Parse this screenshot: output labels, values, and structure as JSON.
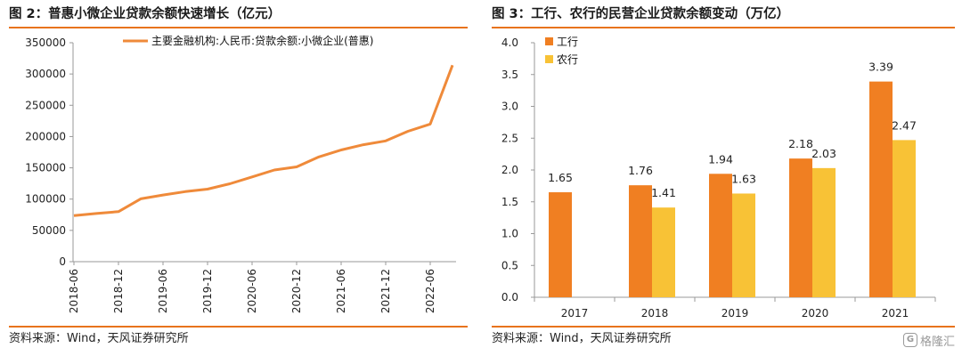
{
  "colors": {
    "accent": "#e8731c",
    "line": "#ef8a3a",
    "icbc": "#f07f22",
    "abc": "#f8c236",
    "axis": "#999999"
  },
  "left": {
    "title": "图 2：普惠小微企业贷款余额快速增长（亿元）",
    "source": "资料来源：Wind，天风证券研究所"
  },
  "right": {
    "title": "图 3：工行、农行的民营企业贷款余额变动（万亿）",
    "source": "资料来源：Wind，天风证券研究所"
  },
  "watermark": {
    "logo": "G",
    "text": "格隆汇"
  },
  "chart_data": [
    {
      "type": "line",
      "title": "普惠小微企业贷款余额快速增长（亿元）",
      "x_tick_labels": [
        "2018-06",
        "2018-12",
        "2019-06",
        "2019-12",
        "2020-06",
        "2020-12",
        "2021-06",
        "2021-12",
        "2022-06"
      ],
      "x": [
        "2018-06",
        "2018-09",
        "2018-12",
        "2019-03",
        "2019-06",
        "2019-09",
        "2019-12",
        "2020-03",
        "2020-06",
        "2020-09",
        "2020-12",
        "2021-03",
        "2021-06",
        "2021-09",
        "2021-12",
        "2022-03",
        "2022-06",
        "2022-09"
      ],
      "series": [
        {
          "name": "主要金融机构:人民币:贷款余额:小微企业(普惠)",
          "values": [
            73500,
            77000,
            80000,
            100500,
            106500,
            112000,
            116000,
            124500,
            135500,
            146500,
            151500,
            167500,
            178500,
            187000,
            193000,
            208500,
            220000,
            314000
          ]
        }
      ],
      "ylim": [
        0,
        350000
      ],
      "y_ticks": [
        0,
        50000,
        100000,
        150000,
        200000,
        250000,
        300000,
        350000
      ],
      "legend": "top-center",
      "grid": false
    },
    {
      "type": "bar",
      "title": "工行、农行的民营企业贷款余额变动（万亿）",
      "categories": [
        "2017",
        "2018",
        "2019",
        "2020",
        "2021"
      ],
      "series": [
        {
          "name": "工行",
          "values": [
            1.65,
            1.76,
            1.94,
            2.18,
            3.39
          ]
        },
        {
          "name": "农行",
          "values": [
            null,
            1.41,
            1.63,
            2.03,
            2.47
          ]
        }
      ],
      "value_labels": [
        [
          "1.65",
          "1.76",
          "1.94",
          "2.18",
          "3.39"
        ],
        [
          "",
          "1.41",
          "1.63",
          "2.03",
          "2.47"
        ]
      ],
      "ylim": [
        0,
        4.0
      ],
      "y_ticks": [
        "0.0",
        "0.5",
        "1.0",
        "1.5",
        "2.0",
        "2.5",
        "3.0",
        "3.5",
        "4.0"
      ],
      "legend": "top-left",
      "grid": false
    }
  ]
}
